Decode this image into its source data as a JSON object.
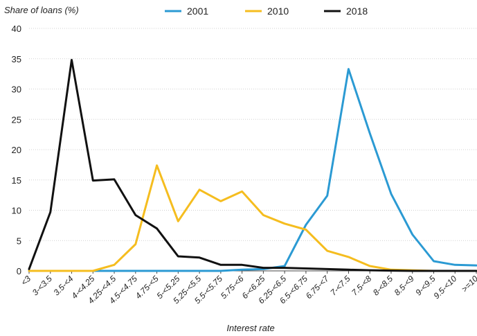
{
  "chart_data": {
    "type": "line",
    "title": "",
    "ylabel": "Share of loans (%)",
    "xlabel": "Interest rate",
    "ylim": [
      0,
      40
    ],
    "yticks": [
      0,
      5,
      10,
      15,
      20,
      25,
      30,
      35,
      40
    ],
    "grid": "horizontal",
    "legend_position": "top",
    "categories": [
      "<3",
      "3-<3.5",
      "3.5-<4",
      "4-<4.25",
      "4.25-<4.5",
      "4.5-<4.75",
      "4.75-<5",
      "5-<5.25",
      "5.25-<5.5",
      "5.5-<5.75",
      "5.75-<6",
      "6-<6.25",
      "6.25-<6.5",
      "6.5-<6.75",
      "6.75-<7",
      "7-<7.5",
      "7.5-<8",
      "8-<8.5",
      "8.5-<9",
      "9-<9.5",
      "9.5-<10",
      ">=10"
    ],
    "series": [
      {
        "name": "2001",
        "color": "#2b9ad3",
        "values": [
          0,
          0,
          0,
          0,
          0,
          0,
          0,
          0,
          0,
          0,
          0.2,
          0.3,
          0.8,
          7.6,
          12.4,
          33.3,
          22.7,
          12.7,
          6.0,
          1.6,
          1.0,
          0.9
        ]
      },
      {
        "name": "2010",
        "color": "#f5bd1f",
        "values": [
          0,
          0,
          0,
          0,
          1.0,
          4.4,
          17.4,
          8.2,
          13.4,
          11.5,
          13.1,
          9.2,
          7.8,
          6.8,
          3.3,
          2.3,
          0.8,
          0.2,
          0.1,
          0,
          0,
          0
        ]
      },
      {
        "name": "2018",
        "color": "#111111",
        "values": [
          0.3,
          9.7,
          34.8,
          14.9,
          15.1,
          9.2,
          7.0,
          2.4,
          2.2,
          1.0,
          1.0,
          0.5,
          0.5,
          0.4,
          0.3,
          0.2,
          0.1,
          0.05,
          0,
          0,
          0,
          0
        ]
      }
    ]
  }
}
